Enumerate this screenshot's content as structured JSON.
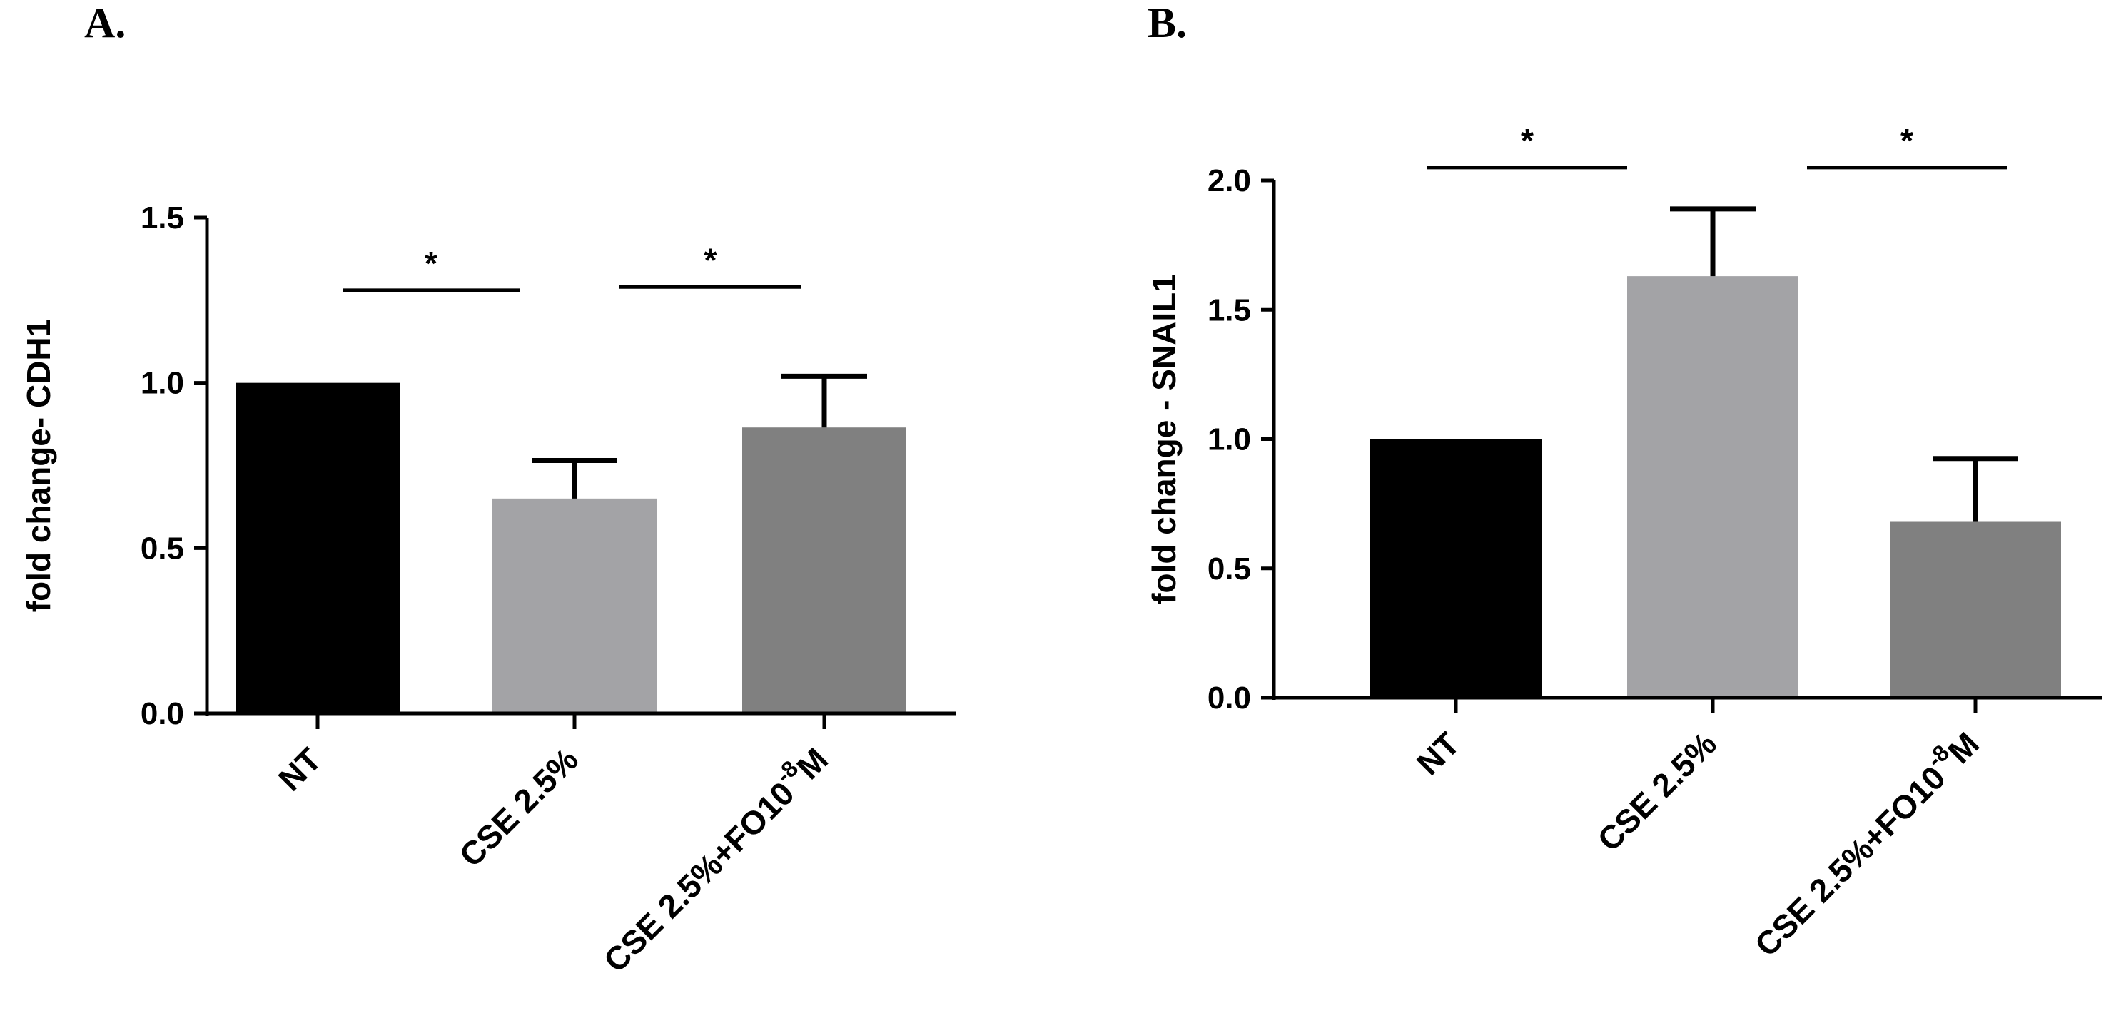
{
  "chart_data": [
    {
      "type": "bar",
      "panel_label": "A.",
      "categories": [
        "NT",
        "CSE 2.5%",
        "CSE 2.5%+FO10-8M"
      ],
      "category_labels": [
        {
          "main": "NT",
          "sup": "",
          "tail": ""
        },
        {
          "main": "CSE 2.5%",
          "sup": "",
          "tail": ""
        },
        {
          "main": "CSE 2.5%+FO10",
          "sup": "-8",
          "tail": "M"
        }
      ],
      "values": [
        1.0,
        0.65,
        0.865
      ],
      "errors": [
        0.0,
        0.115,
        0.155
      ],
      "colors": [
        "#000000",
        "#a3a3a6",
        "#808080"
      ],
      "title": "",
      "xlabel": "",
      "ylabel": "fold change- CDH1",
      "ylim": [
        0,
        1.5
      ],
      "yticks": [
        0.0,
        0.5,
        1.0,
        1.5
      ],
      "ytick_labels": [
        "0.0",
        "0.5",
        "1.0",
        "1.5"
      ],
      "significance": [
        {
          "from": 0,
          "to": 1,
          "label": "*",
          "y": 1.28
        },
        {
          "from": 1,
          "to": 2,
          "label": "*",
          "y": 1.29
        }
      ]
    },
    {
      "type": "bar",
      "panel_label": "B.",
      "categories": [
        "NT",
        "CSE 2.5%",
        "CSE 2.5%+FO10-8M"
      ],
      "category_labels": [
        {
          "main": "NT",
          "sup": "",
          "tail": ""
        },
        {
          "main": "CSE 2.5%",
          "sup": "",
          "tail": ""
        },
        {
          "main": "CSE 2.5%+FO10",
          "sup": "-8",
          "tail": "M"
        }
      ],
      "values": [
        1.0,
        1.63,
        0.68
      ],
      "errors": [
        0.0,
        0.26,
        0.245
      ],
      "colors": [
        "#000000",
        "#a3a3a6",
        "#808080"
      ],
      "title": "",
      "xlabel": "",
      "ylabel": "fold change - SNAIL1",
      "ylim": [
        0,
        2.0
      ],
      "yticks": [
        0.0,
        0.5,
        1.0,
        1.5,
        2.0
      ],
      "ytick_labels": [
        "0.0",
        "0.5",
        "1.0",
        "1.5",
        "2.0"
      ],
      "significance": [
        {
          "from": 0,
          "to": 1,
          "label": "*",
          "y": 2.05
        },
        {
          "from": 1,
          "to": 2,
          "label": "*",
          "y": 2.05
        }
      ]
    }
  ]
}
